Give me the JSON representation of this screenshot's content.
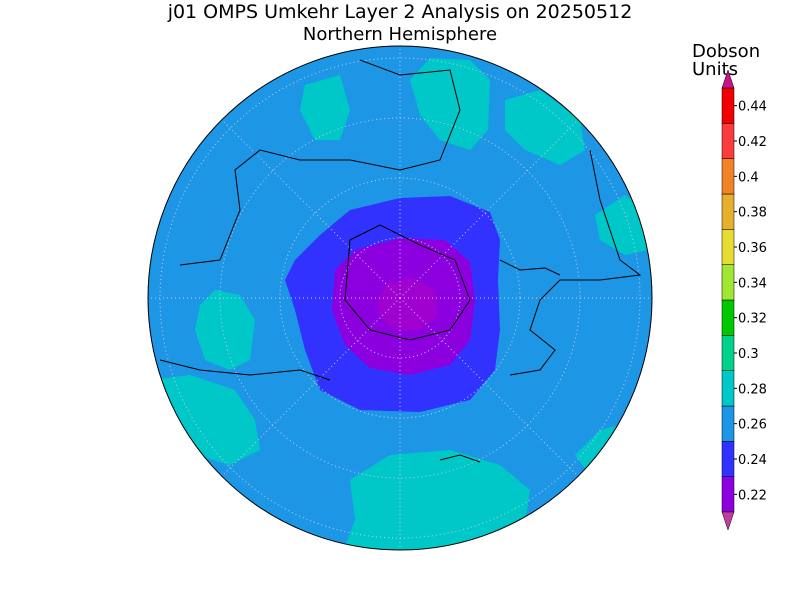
{
  "title": "j01 OMPS Umkehr Layer 2 Analysis on 20250512",
  "subtitle": "Northern Hemisphere",
  "colorbar": {
    "label": [
      "Dobson",
      "Units"
    ],
    "ticks": [
      0.22,
      0.24,
      0.26,
      0.28,
      0.3,
      0.32,
      0.34,
      0.36,
      0.38,
      0.4,
      0.42,
      0.44
    ],
    "colors": [
      "#8c00e0",
      "#3232ff",
      "#1e96e6",
      "#00c8c8",
      "#00d28c",
      "#00c800",
      "#a0e632",
      "#e6dc32",
      "#e6af2d",
      "#f08228",
      "#fa3c3c",
      "#f00000"
    ],
    "under_color": "#c03ca0",
    "over_color": "#c8148c"
  }
}
